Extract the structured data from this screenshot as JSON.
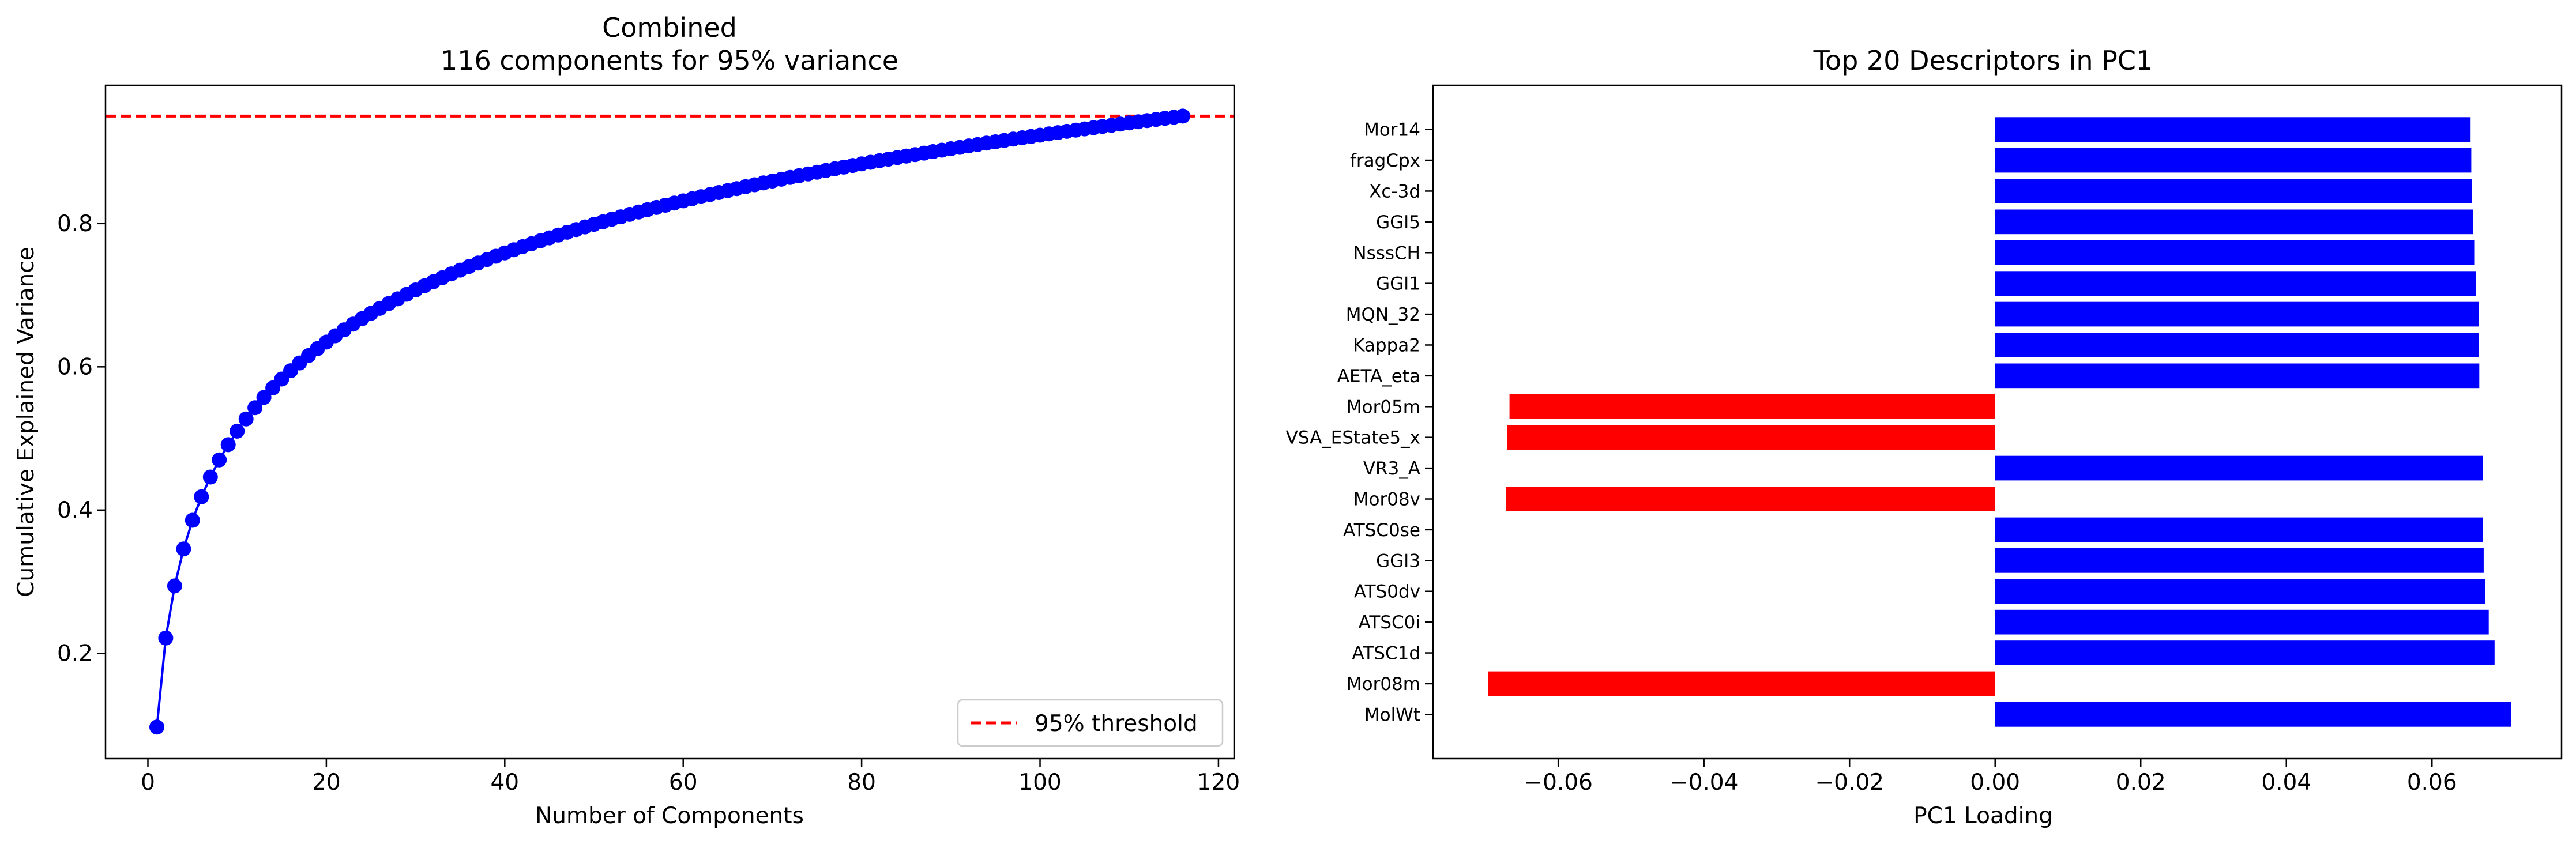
{
  "chart_data": [
    {
      "type": "line",
      "title": "Combined\n116 components for 95% variance",
      "title_lines": [
        "Combined",
        "116 components for 95% variance"
      ],
      "xlabel": "Number of Components",
      "ylabel": "Cumulative Explained Variance",
      "xlim": [
        -4.75,
        121.75
      ],
      "ylim": [
        0.053,
        0.993
      ],
      "xticks": [
        0,
        20,
        40,
        60,
        80,
        100,
        120
      ],
      "yticks": [
        0.2,
        0.4,
        0.6,
        0.8
      ],
      "xtick_labels": [
        "0",
        "20",
        "40",
        "60",
        "80",
        "100",
        "120"
      ],
      "ytick_labels": [
        "0.2",
        "0.4",
        "0.6",
        "0.8"
      ],
      "grid": false,
      "legend_position": "lower-right",
      "series": [
        {
          "color": "#0000ff",
          "marker": "circle",
          "x_start": 1,
          "x_end": 116,
          "y_start": 0.097,
          "y_end": 0.95
        }
      ],
      "threshold": {
        "name": "95% threshold",
        "value": 0.95,
        "color": "#ff0000",
        "style": "dashed"
      }
    },
    {
      "type": "bar",
      "orientation": "horizontal",
      "title": "Top 20 Descriptors in PC1",
      "xlabel": "PC1 Loading",
      "ylabel": "",
      "xlim": [
        -0.0772,
        0.0778
      ],
      "xticks": [
        -0.06,
        -0.04,
        -0.02,
        0.0,
        0.02,
        0.04,
        0.06
      ],
      "xtick_labels": [
        "−0.06",
        "−0.04",
        "−0.02",
        "0.00",
        "0.02",
        "0.04",
        "0.06"
      ],
      "grid": false,
      "positive_color": "#0000ff",
      "negative_color": "#ff0000",
      "categories": [
        "MolWt",
        "Mor08m",
        "ATSC1d",
        "ATSC0i",
        "ATS0dv",
        "GGI3",
        "ATSC0se",
        "Mor08v",
        "VR3_A",
        "VSA_EState5_x",
        "Mor05m",
        "AETA_eta",
        "Kappa2",
        "MQN_32",
        "GGI1",
        "NsssCH",
        "GGI5",
        "Xc-3d",
        "fragCpx",
        "Mor14"
      ],
      "values": [
        0.0709,
        -0.0696,
        0.0686,
        0.0678,
        0.0673,
        0.0671,
        0.067,
        -0.0672,
        0.067,
        -0.067,
        -0.0667,
        0.0665,
        0.0664,
        0.0664,
        0.066,
        0.0658,
        0.0656,
        0.0655,
        0.0654,
        0.0653
      ]
    }
  ]
}
